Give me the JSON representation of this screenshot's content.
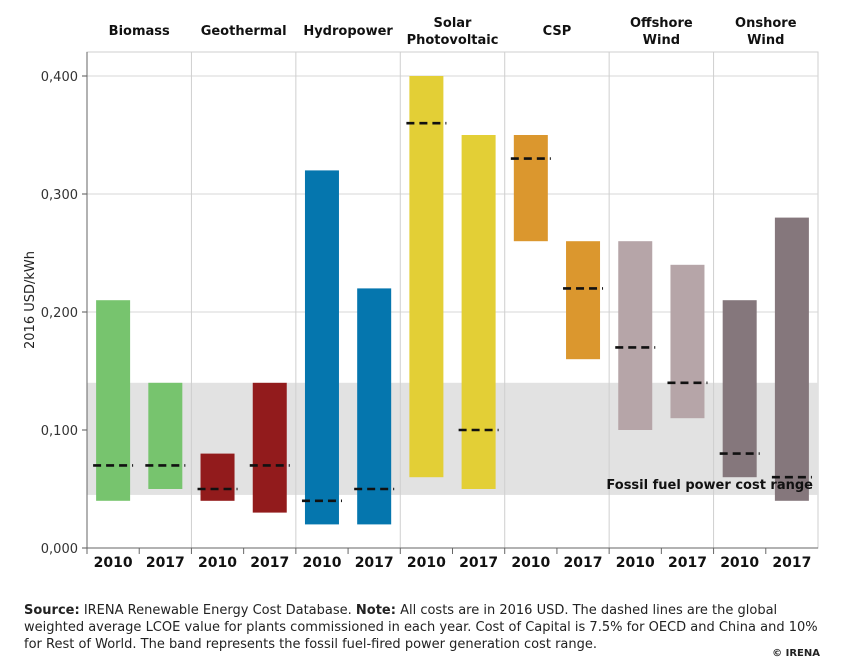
{
  "chart_data": {
    "type": "bar",
    "subtype": "floating-range",
    "ylabel": "2016 USD/kWh",
    "ylim": [
      0,
      0.42
    ],
    "yticks": [
      0.0,
      0.1,
      0.2,
      0.3,
      0.4
    ],
    "ytick_labels": [
      "0,000",
      "0,100",
      "0,200",
      "0,300",
      "0,400"
    ],
    "grid": "horizontal",
    "band": {
      "low": 0.045,
      "high": 0.14,
      "color": "#e2e2e2",
      "label": "Fossil fuel power cost range"
    },
    "groups": [
      {
        "name": "Biomass",
        "color": "#77c46e",
        "bars": [
          {
            "year": "2010",
            "low": 0.04,
            "high": 0.21,
            "avg": 0.07
          },
          {
            "year": "2017",
            "low": 0.05,
            "high": 0.14,
            "avg": 0.07
          }
        ]
      },
      {
        "name": "Geothermal",
        "color": "#921b1c",
        "bars": [
          {
            "year": "2010",
            "low": 0.04,
            "high": 0.08,
            "avg": 0.05
          },
          {
            "year": "2017",
            "low": 0.03,
            "high": 0.14,
            "avg": 0.07
          }
        ]
      },
      {
        "name": "Hydropower",
        "color": "#0576ae",
        "bars": [
          {
            "year": "2010",
            "low": 0.02,
            "high": 0.32,
            "avg": 0.04
          },
          {
            "year": "2017",
            "low": 0.02,
            "high": 0.22,
            "avg": 0.05
          }
        ]
      },
      {
        "name": "Solar\nPhotovoltaic",
        "color": "#e3cf36",
        "bars": [
          {
            "year": "2010",
            "low": 0.06,
            "high": 0.4,
            "avg": 0.36
          },
          {
            "year": "2017",
            "low": 0.05,
            "high": 0.35,
            "avg": 0.1
          }
        ]
      },
      {
        "name": "CSP",
        "color": "#db972e",
        "bars": [
          {
            "year": "2010",
            "low": 0.26,
            "high": 0.35,
            "avg": 0.33
          },
          {
            "year": "2017",
            "low": 0.16,
            "high": 0.26,
            "avg": 0.22
          }
        ]
      },
      {
        "name": "Offshore\nWind",
        "color": "#b6a5a8",
        "bars": [
          {
            "year": "2010",
            "low": 0.1,
            "high": 0.26,
            "avg": 0.17
          },
          {
            "year": "2017",
            "low": 0.11,
            "high": 0.24,
            "avg": 0.14
          }
        ]
      },
      {
        "name": "Onshore\nWind",
        "color": "#85777c",
        "bars": [
          {
            "year": "2010",
            "low": 0.06,
            "high": 0.21,
            "avg": 0.08
          },
          {
            "year": "2017",
            "low": 0.04,
            "high": 0.28,
            "avg": 0.06
          }
        ]
      }
    ]
  },
  "footer": {
    "source_label": "Source:",
    "source_text": " IRENA Renewable Energy Cost Database. ",
    "note_label": "Note:",
    "note_text": " All costs are in 2016 USD. The dashed lines are the global weighted average LCOE value for plants commissioned in each year. Cost of Capital is 7.5% for OECD and China and 10% for Rest of World. The band represents the fossil fuel-fired power generation cost range.",
    "credit": "© IRENA"
  }
}
